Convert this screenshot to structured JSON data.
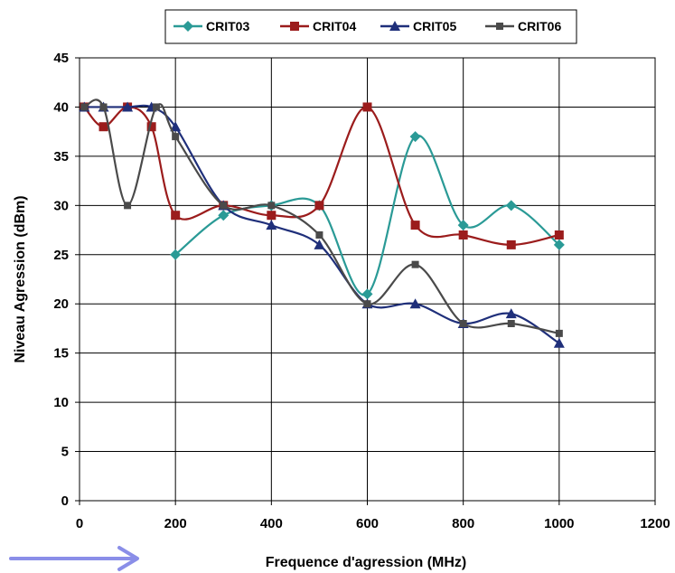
{
  "chart_data": {
    "type": "line",
    "title": "",
    "xlabel": "Frequence d'agression (MHz)",
    "ylabel": "Niveau Agression (dBm)",
    "xlim": [
      0,
      1200
    ],
    "ylim": [
      0,
      45
    ],
    "x_ticks": [
      "0",
      "200",
      "400",
      "600",
      "800",
      "1000",
      "1200"
    ],
    "y_ticks": [
      "0",
      "5",
      "10",
      "15",
      "20",
      "25",
      "30",
      "35",
      "40",
      "45"
    ],
    "grid": true,
    "legend_position": "top",
    "smooth": true,
    "series": [
      {
        "name": "CRIT03",
        "color": "#2a9a96",
        "marker": "diamond",
        "points": [
          [
            200,
            25
          ],
          [
            300,
            29
          ],
          [
            400,
            30
          ],
          [
            500,
            30
          ],
          [
            600,
            21
          ],
          [
            700,
            37
          ],
          [
            800,
            28
          ],
          [
            900,
            30
          ],
          [
            1000,
            26
          ]
        ]
      },
      {
        "name": "CRIT04",
        "color": "#9b1c1c",
        "marker": "square",
        "points": [
          [
            10,
            40
          ],
          [
            50,
            38
          ],
          [
            100,
            40
          ],
          [
            150,
            38
          ],
          [
            200,
            29
          ],
          [
            300,
            30
          ],
          [
            400,
            29
          ],
          [
            500,
            30
          ],
          [
            600,
            40
          ],
          [
            700,
            28
          ],
          [
            800,
            27
          ],
          [
            900,
            26
          ],
          [
            1000,
            27
          ]
        ]
      },
      {
        "name": "CRIT05",
        "color": "#1f2f7a",
        "marker": "triangle",
        "points": [
          [
            10,
            40
          ],
          [
            50,
            40
          ],
          [
            100,
            40
          ],
          [
            150,
            40
          ],
          [
            200,
            38
          ],
          [
            300,
            30
          ],
          [
            400,
            28
          ],
          [
            500,
            26
          ],
          [
            600,
            20
          ],
          [
            700,
            20
          ],
          [
            800,
            18
          ],
          [
            900,
            19
          ],
          [
            1000,
            16
          ]
        ]
      },
      {
        "name": "CRIT06",
        "color": "#4a4a4a",
        "marker": "square-small",
        "points": [
          [
            10,
            40
          ],
          [
            50,
            40
          ],
          [
            100,
            30
          ],
          [
            160,
            40
          ],
          [
            200,
            37
          ],
          [
            300,
            30
          ],
          [
            400,
            30
          ],
          [
            500,
            27
          ],
          [
            600,
            20
          ],
          [
            700,
            24
          ],
          [
            800,
            18
          ],
          [
            900,
            18
          ],
          [
            1000,
            17
          ]
        ]
      }
    ],
    "decoration": {
      "arrow_color": "#8a8ee8",
      "arrow_name": "arrow-icon"
    }
  }
}
